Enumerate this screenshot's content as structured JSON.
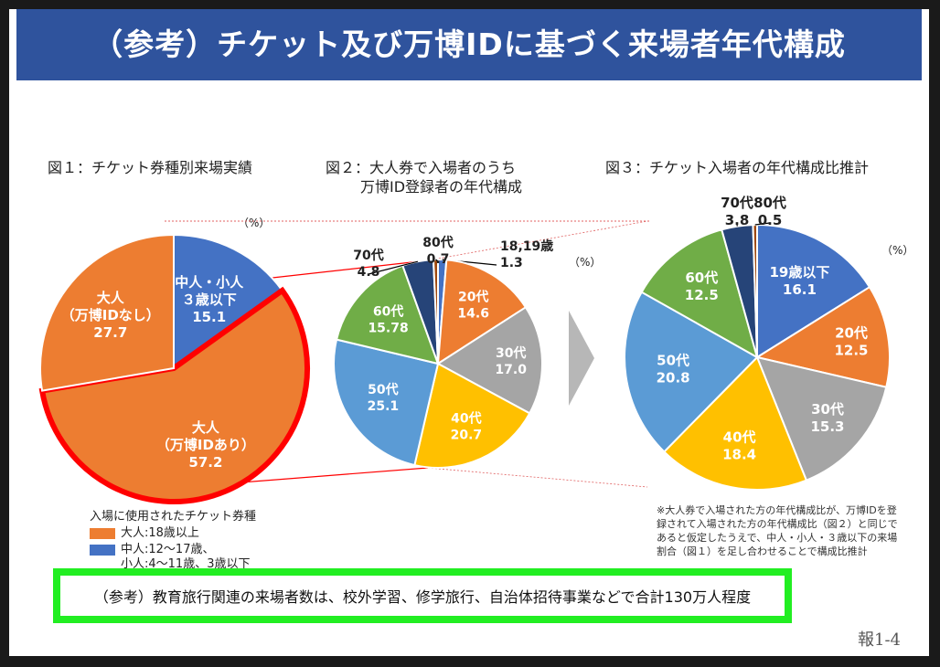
{
  "header": {
    "title": "（参考）チケット及び万博IDに基づく来場者年代構成"
  },
  "figures": {
    "fig1": {
      "title": "図１：チケット券種別来場実績",
      "unit": "（%）"
    },
    "fig2": {
      "title_line1": "図２：大人券で入場者のうち",
      "title_line2": "万博ID登録者の年代構成",
      "unit": "（%）"
    },
    "fig3": {
      "title": "図３：チケット入場者の年代構成比推計",
      "unit": "（%）"
    }
  },
  "chart_data": [
    {
      "type": "pie",
      "title": "図１：チケット券種別来場実績",
      "slices": [
        {
          "label_lines": [
            "中人・小人",
            "３歳以下"
          ],
          "value": 15.1,
          "value_text": "15.1",
          "color": "#4472c4"
        },
        {
          "label_lines": [
            "大人",
            "（万博IDあり）"
          ],
          "value": 57.2,
          "value_text": "57.2",
          "color": "#ed7d31",
          "highlighted": true,
          "highlight_color": "#ff0000"
        },
        {
          "label_lines": [
            "大人",
            "（万博IDなし）"
          ],
          "value": 27.7,
          "value_text": "27.7",
          "color": "#ed7d31"
        }
      ]
    },
    {
      "type": "pie",
      "title": "図２：大人券で入場者のうち万博ID登録者の年代構成",
      "slices": [
        {
          "label_lines": [
            "18,19歳"
          ],
          "value": 1.3,
          "value_text": "1.3",
          "color": "#4472c4"
        },
        {
          "label_lines": [
            "20代"
          ],
          "value": 14.6,
          "value_text": "14.6",
          "color": "#ed7d31"
        },
        {
          "label_lines": [
            "30代"
          ],
          "value": 17.0,
          "value_text": "17.0",
          "color": "#a5a5a5"
        },
        {
          "label_lines": [
            "40代"
          ],
          "value": 20.7,
          "value_text": "20.7",
          "color": "#ffc000"
        },
        {
          "label_lines": [
            "50代"
          ],
          "value": 25.1,
          "value_text": "25.1",
          "color": "#5b9bd5"
        },
        {
          "label_lines": [
            "60代"
          ],
          "value": 15.78,
          "value_text": "15.78",
          "color": "#70ad47"
        },
        {
          "label_lines": [
            "70代"
          ],
          "value": 4.8,
          "value_text": "4.8",
          "color": "#264478"
        },
        {
          "label_lines": [
            "80代"
          ],
          "value": 0.7,
          "value_text": "0.7",
          "color": "#9e480e"
        }
      ]
    },
    {
      "type": "pie",
      "title": "図３：チケット入場者の年代構成比推計",
      "slices": [
        {
          "label_lines": [
            "19歳以下"
          ],
          "value": 16.1,
          "value_text": "16.1",
          "color": "#4472c4"
        },
        {
          "label_lines": [
            "20代"
          ],
          "value": 12.5,
          "value_text": "12.5",
          "color": "#ed7d31"
        },
        {
          "label_lines": [
            "30代"
          ],
          "value": 15.3,
          "value_text": "15.3",
          "color": "#a5a5a5"
        },
        {
          "label_lines": [
            "40代"
          ],
          "value": 18.4,
          "value_text": "18.4",
          "color": "#ffc000"
        },
        {
          "label_lines": [
            "50代"
          ],
          "value": 20.8,
          "value_text": "20.8",
          "color": "#5b9bd5"
        },
        {
          "label_lines": [
            "60代"
          ],
          "value": 12.5,
          "value_text": "12.5",
          "color": "#70ad47"
        },
        {
          "label_lines": [
            "70代"
          ],
          "value": 3.8,
          "value_text": "3.8",
          "color": "#264478"
        },
        {
          "label_lines": [
            "80代"
          ],
          "value": 0.5,
          "value_text": "0.5",
          "color": "#9e480e"
        }
      ]
    }
  ],
  "legend": {
    "title": "入場に使用されたチケット券種",
    "items": [
      {
        "label_lines": [
          "大人:18歳以上"
        ],
        "color": "#ed7d31"
      },
      {
        "label_lines": [
          "中人:12～17歳、",
          "小人:4～11歳、3歳以下"
        ],
        "color": "#4472c4"
      }
    ]
  },
  "note": "※大人券で入場された方の年代構成比が、万博IDを登録されて入場された方の年代構成比（図２）と同じであると仮定したうえで、中人・小人・３歳以下の来場割合（図１）を足し合わせることで構成比推計",
  "reference": "（参考）教育旅行関連の来場者数は、校外学習、修学旅行、自治体招待事業などで合計130万人程度",
  "page_number": "報1-4",
  "colors": {
    "header_bg": "#2f539d",
    "ref_border": "#22ee22",
    "highlight": "#ff0000",
    "arrow": "#b7b7b7"
  }
}
